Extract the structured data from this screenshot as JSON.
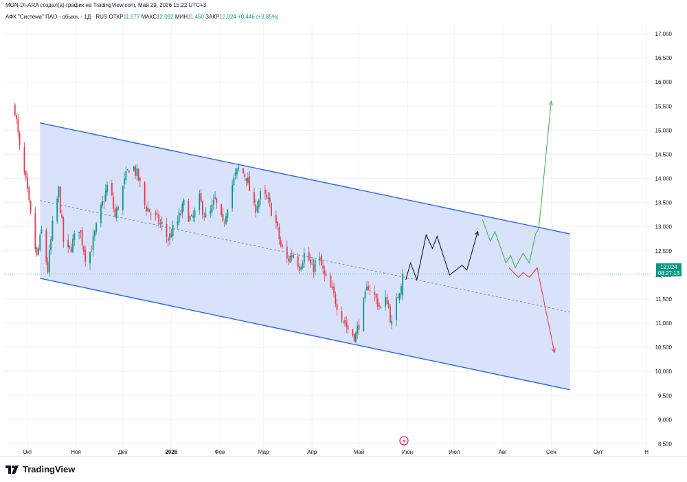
{
  "header": {
    "author_line": "MON-DI-ARA создал(а) график на TradingView.com, Май 29, 2026 15:22 UTC+3",
    "symbol_title": "АФК \"Система\" ПАО - обыкн. · 1Д · RUS",
    "ohlc": [
      {
        "label": "ОТКР",
        "value": "11,577"
      },
      {
        "label": "МАКС",
        "value": "12,092"
      },
      {
        "label": "МИН",
        "value": "11,450"
      },
      {
        "label": "ЗАКР",
        "value": "12,024"
      }
    ],
    "change": "+0,446 (+3,85%)"
  },
  "price_tag": {
    "price": "12,024",
    "countdown": "08:27:13"
  },
  "footer": {
    "brand": "TradingView"
  },
  "colors": {
    "up": "#089981",
    "down": "#f23645",
    "channel_line": "#2962ff",
    "channel_fill": "#d6e0fb",
    "projection_main": "#131722",
    "projection_bull": "#4caf50",
    "projection_bear": "#f23645"
  },
  "chart_data": {
    "type": "candlestick",
    "y_axis": {
      "min": 8.25,
      "max": 17.2,
      "ticks": [
        "17,000",
        "16,500",
        "16,000",
        "15,500",
        "15,000",
        "14,500",
        "14,000",
        "13,500",
        "13,000",
        "12,500",
        "12,000",
        "11,500",
        "11,000",
        "10,500",
        "10,000",
        "9,500",
        "9,000",
        "8,500"
      ]
    },
    "x_axis": {
      "labels": [
        "Окт",
        "Ноя",
        "Дек",
        "2026",
        "Фев",
        "Мар",
        "Апр",
        "Май",
        "Июн",
        "Июл",
        "Авг",
        "Сен",
        "Окт",
        "Н"
      ]
    },
    "price_close_series": [
      {
        "date": "2025-09-23",
        "close": 15.45
      },
      {
        "date": "2025-09-26",
        "close": 14.6
      },
      {
        "date": "2025-09-30",
        "close": 13.9
      },
      {
        "date": "2025-10-03",
        "close": 13.2
      },
      {
        "date": "2025-10-07",
        "close": 12.35
      },
      {
        "date": "2025-10-10",
        "close": 12.9
      },
      {
        "date": "2025-10-14",
        "close": 12.1
      },
      {
        "date": "2025-10-17",
        "close": 13.0
      },
      {
        "date": "2025-10-21",
        "close": 13.75
      },
      {
        "date": "2025-10-25",
        "close": 12.35
      },
      {
        "date": "2025-10-29",
        "close": 12.6
      },
      {
        "date": "2025-11-03",
        "close": 13.0
      },
      {
        "date": "2025-11-08",
        "close": 12.25
      },
      {
        "date": "2025-11-12",
        "close": 12.7
      },
      {
        "date": "2025-11-17",
        "close": 13.35
      },
      {
        "date": "2025-11-22",
        "close": 13.95
      },
      {
        "date": "2025-11-26",
        "close": 13.2
      },
      {
        "date": "2025-12-01",
        "close": 13.8
      },
      {
        "date": "2025-12-06",
        "close": 14.35
      },
      {
        "date": "2025-12-11",
        "close": 14.0
      },
      {
        "date": "2025-12-15",
        "close": 13.45
      },
      {
        "date": "2025-12-20",
        "close": 13.25
      },
      {
        "date": "2025-12-25",
        "close": 13.05
      },
      {
        "date": "2025-12-30",
        "close": 12.75
      },
      {
        "date": "2026-01-05",
        "close": 13.1
      },
      {
        "date": "2026-01-09",
        "close": 13.45
      },
      {
        "date": "2026-01-14",
        "close": 13.1
      },
      {
        "date": "2026-01-19",
        "close": 13.55
      },
      {
        "date": "2026-01-24",
        "close": 13.1
      },
      {
        "date": "2026-01-29",
        "close": 13.55
      },
      {
        "date": "2026-02-03",
        "close": 13.0
      },
      {
        "date": "2026-02-08",
        "close": 13.8
      },
      {
        "date": "2026-02-13",
        "close": 14.2
      },
      {
        "date": "2026-02-18",
        "close": 14.05
      },
      {
        "date": "2026-02-23",
        "close": 13.35
      },
      {
        "date": "2026-02-28",
        "close": 13.7
      },
      {
        "date": "2026-03-04",
        "close": 13.5
      },
      {
        "date": "2026-03-08",
        "close": 13.2
      },
      {
        "date": "2026-03-12",
        "close": 12.6
      },
      {
        "date": "2026-03-16",
        "close": 12.3
      },
      {
        "date": "2026-03-20",
        "close": 12.45
      },
      {
        "date": "2026-03-24",
        "close": 12.2
      },
      {
        "date": "2026-03-28",
        "close": 12.5
      },
      {
        "date": "2026-04-01",
        "close": 12.1
      },
      {
        "date": "2026-04-05",
        "close": 12.4
      },
      {
        "date": "2026-04-09",
        "close": 11.95
      },
      {
        "date": "2026-04-13",
        "close": 11.7
      },
      {
        "date": "2026-04-17",
        "close": 11.4
      },
      {
        "date": "2026-04-21",
        "close": 11.1
      },
      {
        "date": "2026-04-25",
        "close": 10.8
      },
      {
        "date": "2026-04-29",
        "close": 10.75
      },
      {
        "date": "2026-05-03",
        "close": 11.25
      },
      {
        "date": "2026-05-07",
        "close": 11.8
      },
      {
        "date": "2026-05-11",
        "close": 11.55
      },
      {
        "date": "2026-05-15",
        "close": 11.3
      },
      {
        "date": "2026-05-19",
        "close": 11.5
      },
      {
        "date": "2026-05-22",
        "close": 10.95
      },
      {
        "date": "2026-05-26",
        "close": 11.58
      },
      {
        "date": "2026-05-29",
        "close": 12.024
      }
    ],
    "channel": {
      "upper": [
        {
          "date": "2025-10-09",
          "price": 15.15
        },
        {
          "date": "2026-09-13",
          "price": 12.85
        }
      ],
      "lower": [
        {
          "date": "2025-10-09",
          "price": 11.93
        },
        {
          "date": "2026-09-13",
          "price": 9.62
        }
      ],
      "mid": [
        {
          "date": "2025-10-09",
          "price": 13.54
        },
        {
          "date": "2026-09-13",
          "price": 11.23
        }
      ]
    },
    "projections": [
      {
        "color": "projection_main",
        "points": [
          {
            "date": "2026-05-31",
            "price": 11.9
          },
          {
            "date": "2026-06-03",
            "price": 12.25
          },
          {
            "date": "2026-06-07",
            "price": 11.9
          },
          {
            "date": "2026-06-13",
            "price": 12.83
          },
          {
            "date": "2026-06-17",
            "price": 12.55
          },
          {
            "date": "2026-06-20",
            "price": 12.8
          },
          {
            "date": "2026-06-28",
            "price": 12.0
          },
          {
            "date": "2026-07-06",
            "price": 12.2
          },
          {
            "date": "2026-07-09",
            "price": 12.1
          },
          {
            "date": "2026-07-16",
            "price": 12.9
          }
        ]
      },
      {
        "color": "projection_bull",
        "points": [
          {
            "date": "2026-07-19",
            "price": 13.15
          },
          {
            "date": "2026-07-24",
            "price": 12.7
          },
          {
            "date": "2026-07-27",
            "price": 12.9
          },
          {
            "date": "2026-08-03",
            "price": 12.25
          },
          {
            "date": "2026-08-06",
            "price": 12.4
          },
          {
            "date": "2026-08-09",
            "price": 12.15
          },
          {
            "date": "2026-08-14",
            "price": 12.45
          },
          {
            "date": "2026-08-18",
            "price": 12.25
          },
          {
            "date": "2026-08-22",
            "price": 12.85
          },
          {
            "date": "2026-08-24",
            "price": 12.95
          },
          {
            "date": "2026-09-01",
            "price": 15.6
          }
        ]
      },
      {
        "color": "projection_bear",
        "points": [
          {
            "date": "2026-08-05",
            "price": 12.15
          },
          {
            "date": "2026-08-11",
            "price": 11.95
          },
          {
            "date": "2026-08-14",
            "price": 12.05
          },
          {
            "date": "2026-08-18",
            "price": 11.95
          },
          {
            "date": "2026-08-23",
            "price": 12.15
          },
          {
            "date": "2026-09-03",
            "price": 10.4
          }
        ]
      }
    ]
  }
}
